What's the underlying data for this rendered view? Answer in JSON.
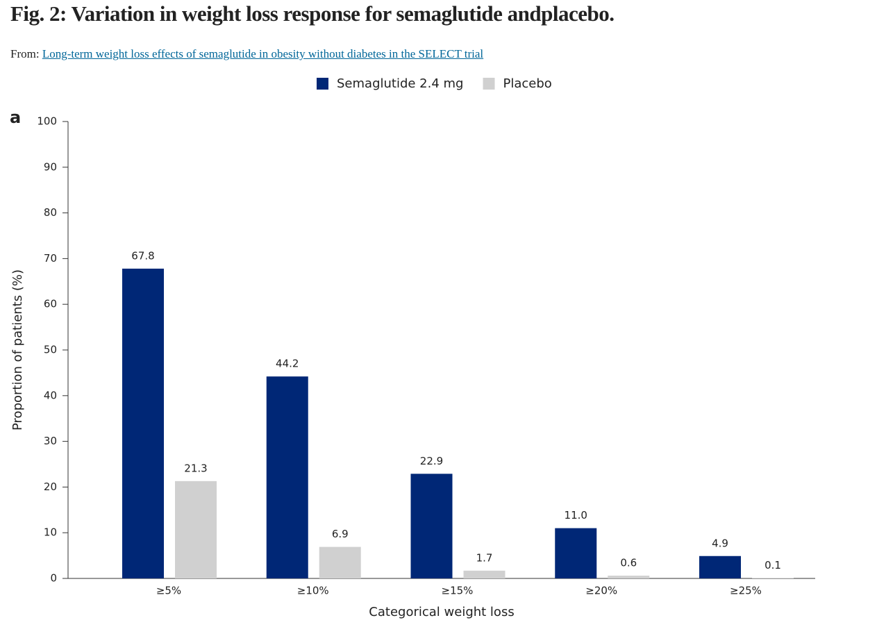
{
  "header": {
    "title": "Fig. 2: Variation in weight loss response for semaglutide andplacebo.",
    "source_prefix": "From:",
    "source_link": "Long-term weight loss effects of semaglutide in obesity without diabetes in the SELECT trial"
  },
  "chart_data": {
    "type": "bar",
    "panel_label": "a",
    "x_label": "Categorical weight loss",
    "y_label": "Proportion of patients (%)",
    "categories": [
      "≥5%",
      "≥10%",
      "≥15%",
      "≥20%",
      "≥25%"
    ],
    "series": [
      {
        "name": "Semaglutide 2.4 mg",
        "color": "#002776",
        "values": [
          67.8,
          44.2,
          22.9,
          11,
          4.9
        ],
        "value_labels": [
          "67.8",
          "44.2",
          "22.9",
          "11.0",
          "4.9"
        ]
      },
      {
        "name": "Placebo",
        "color": "#d0d0d0",
        "values": [
          21.3,
          6.9,
          1.7,
          0.6,
          0.1
        ],
        "value_labels": [
          "21.3",
          "6.9",
          "1.7",
          "0.6",
          "0.1"
        ]
      }
    ],
    "ylim": [
      0,
      100
    ],
    "yticks": [
      0,
      10,
      20,
      30,
      40,
      50,
      60,
      70,
      80,
      90,
      100
    ],
    "grid": false,
    "legend": "top"
  }
}
